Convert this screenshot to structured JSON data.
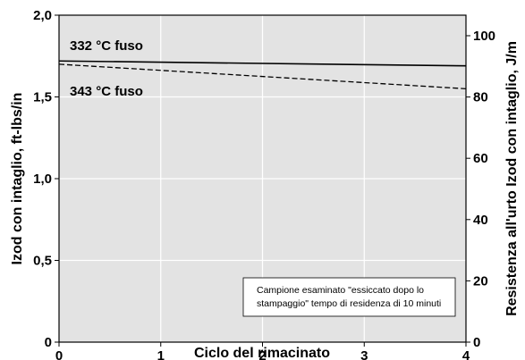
{
  "chart_data": {
    "type": "line",
    "xlabel": "Ciclo del rimacinato",
    "ylabel": "Izod con intaglio, ft-lbs/in",
    "y2label": "Resistenza all'urto Izod con intaglio, J/m",
    "xlim": [
      0,
      4
    ],
    "ylim": [
      0,
      2.0
    ],
    "y2lim": [
      0,
      106.7
    ],
    "x_ticks": [
      "0",
      "1",
      "2",
      "3",
      "4"
    ],
    "y_ticks": [
      "0",
      "0,5",
      "1,0",
      "1,5",
      "2,0"
    ],
    "y2_ticks": [
      "0",
      "20",
      "40",
      "60",
      "80",
      "100"
    ],
    "y2_tick_values": [
      0,
      20,
      40,
      60,
      80,
      100
    ],
    "grid": true,
    "series": [
      {
        "name": "332 °C fuso",
        "style": "solid",
        "color": "#000000",
        "x": [
          0,
          4
        ],
        "values": [
          1.72,
          1.69
        ]
      },
      {
        "name": "343 °C fuso",
        "style": "dashed",
        "color": "#000000",
        "x": [
          0,
          4
        ],
        "values": [
          1.7,
          1.55
        ]
      }
    ],
    "annotation": {
      "lines": [
        "Campione esaminato \"essiccato dopo lo",
        "stampaggio\" tempo di residenza di 10 minuti"
      ]
    },
    "colors": {
      "plot_bg": "#e3e3e3",
      "grid": "#ffffff"
    }
  }
}
